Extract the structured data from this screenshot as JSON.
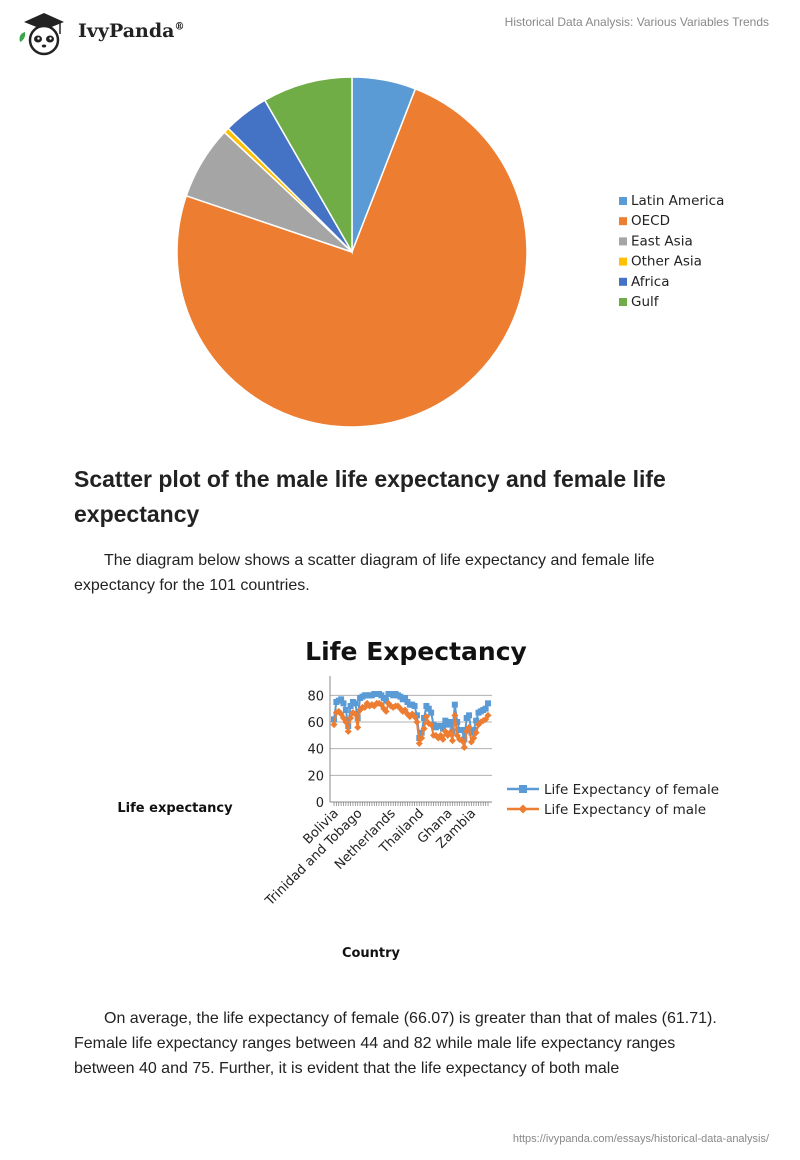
{
  "header": {
    "brand": "IvyPanda",
    "registered": "®",
    "doc_title": "Historical Data Analysis: Various Variables Trends"
  },
  "colors": {
    "latin_america": "#5b9bd5",
    "oecd": "#ed7d31",
    "east_asia": "#a5a5a5",
    "other_asia": "#ffc000",
    "africa": "#4472c4",
    "gulf": "#70ad47",
    "female": "#5b9bd5",
    "male": "#ed7d31"
  },
  "chart_data": [
    {
      "type": "pie",
      "title": "",
      "categories": [
        "Latin America",
        "OECD",
        "East Asia",
        "Other Asia",
        "Africa",
        "Gulf"
      ],
      "values": [
        5.9,
        74.3,
        6.8,
        0.5,
        4.2,
        8.3
      ],
      "legend_position": "right"
    },
    {
      "type": "line",
      "title": "Life Expectancy",
      "xlabel": "Country",
      "ylabel": "Life expectancy",
      "ylim": [
        0,
        90
      ],
      "yticks": [
        0,
        20,
        40,
        60,
        80
      ],
      "x_tick_labels": [
        "Bolivia",
        "Trinidad and Tobago",
        "Netherlands",
        "Thailand",
        "Ghana",
        "Zambia"
      ],
      "grid": true,
      "legend_position": "right",
      "series": [
        {
          "name": "Life Expectancy of female",
          "values": [
            62,
            75,
            76,
            77,
            74,
            69,
            57,
            72,
            75,
            74,
            63,
            78,
            79,
            80,
            80,
            80,
            80,
            81,
            81,
            81,
            80,
            78,
            76,
            81,
            81,
            80,
            81,
            80,
            79,
            77,
            78,
            75,
            73,
            73,
            72,
            65,
            48,
            52,
            63,
            72,
            70,
            67,
            58,
            56,
            57,
            57,
            55,
            61,
            58,
            60,
            53,
            73,
            60,
            54,
            54,
            47,
            63,
            65,
            52,
            54,
            61,
            67,
            68,
            69,
            70,
            74
          ]
        },
        {
          "name": "Life Expectancy of male",
          "values": [
            58,
            67,
            68,
            66,
            63,
            60,
            53,
            63,
            67,
            66,
            56,
            69,
            71,
            71,
            74,
            72,
            73,
            72,
            74,
            74,
            73,
            70,
            68,
            74,
            72,
            71,
            72,
            72,
            70,
            68,
            69,
            66,
            64,
            66,
            64,
            60,
            44,
            48,
            55,
            64,
            59,
            58,
            50,
            50,
            48,
            50,
            47,
            53,
            50,
            52,
            46,
            65,
            50,
            47,
            46,
            41,
            53,
            56,
            45,
            48,
            52,
            58,
            60,
            61,
            62,
            65
          ]
        }
      ]
    }
  ],
  "heading": "Scatter plot of the male life expectancy and female life expectancy",
  "paragraph1": "The diagram below shows a scatter diagram of life expectancy and female life expectancy for the 101 countries.",
  "paragraph2": "On average, the life expectancy of female (66.07) is greater than that of males (61.71). Female life expectancy ranges between 44 and 82 while male life expectancy ranges between 40 and 75. Further, it is evident that the life expectancy of both male",
  "footer": {
    "url": "https://ivypanda.com/essays/historical-data-analysis/"
  }
}
